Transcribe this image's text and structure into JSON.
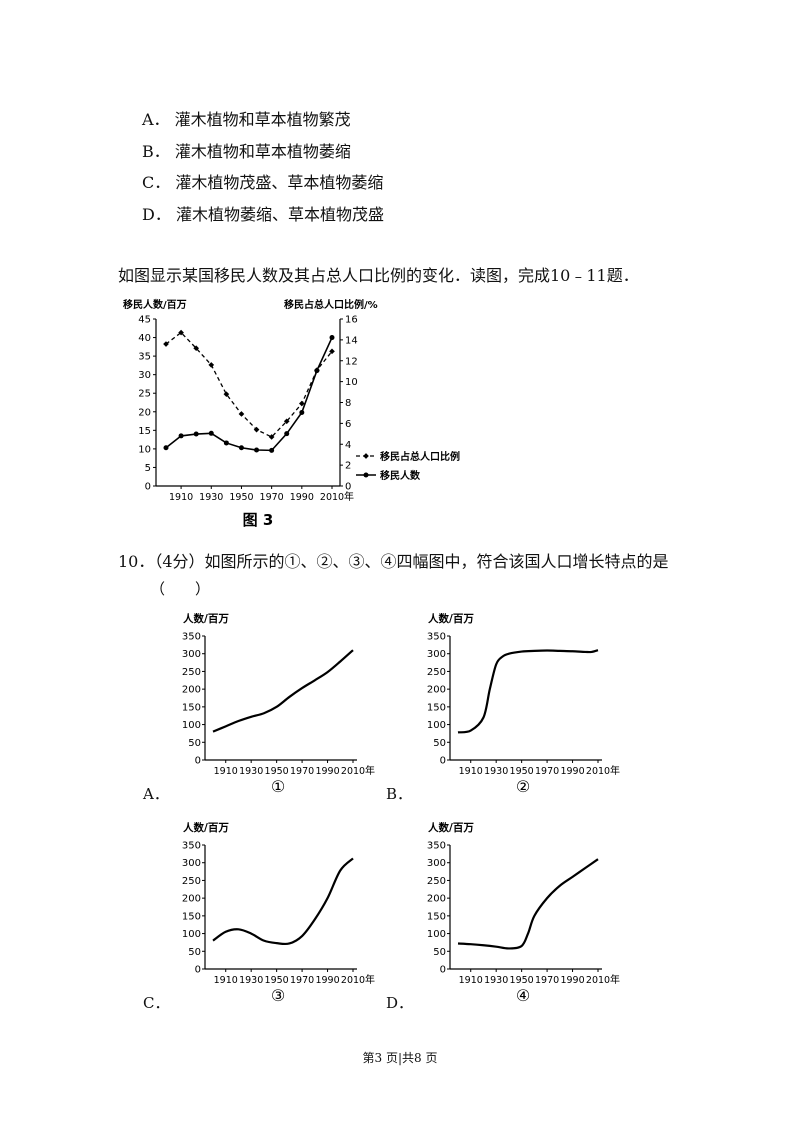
{
  "options_top": [
    {
      "letter": "A．",
      "text": "灌木植物和草本植物繁茂"
    },
    {
      "letter": "B．",
      "text": "灌木植物和草本植物萎缩"
    },
    {
      "letter": "C．",
      "text": "灌木植物茂盛、草本植物萎缩"
    },
    {
      "letter": "D．",
      "text": "灌木植物萎缩、草本植物茂盛"
    }
  ],
  "intro": "如图显示某国移民人数及其占总人口比例的变化．读图，完成10﹣11题．",
  "question10": "10．（4分）如图所示的①、②、③、④四幅图中，符合该国人口增长特点的是",
  "question10_paren": "（　　）",
  "answer_labels": [
    "A．",
    "B．",
    "C．",
    "D．"
  ],
  "footer": "第3 页|共8 页",
  "chart_data": [
    {
      "type": "line",
      "caption": "图 3",
      "ylabel_left": "移民人数/百万",
      "ylabel_right": "移民占总人口比例/%",
      "xlabel": "年",
      "x": [
        1900,
        1910,
        1920,
        1930,
        1940,
        1950,
        1960,
        1970,
        1980,
        1990,
        2000,
        2010
      ],
      "x_ticks": [
        "1910",
        "1930",
        "1950",
        "1970",
        "1990",
        "2010"
      ],
      "ylim_left": [
        0,
        45
      ],
      "yticks_left": [
        0,
        5,
        10,
        15,
        20,
        25,
        30,
        35,
        40,
        45
      ],
      "ylim_right": [
        0,
        16
      ],
      "yticks_right": [
        0,
        2,
        4,
        6,
        8,
        10,
        12,
        14,
        16
      ],
      "series": [
        {
          "name": "移民占总人口比例",
          "axis": "right",
          "style": "dashed",
          "values": [
            13.6,
            14.7,
            13.2,
            11.6,
            8.8,
            6.9,
            5.4,
            4.7,
            6.2,
            7.9,
            11.1,
            12.9
          ]
        },
        {
          "name": "移民人数",
          "axis": "left",
          "style": "solid",
          "values": [
            10.3,
            13.5,
            14.0,
            14.2,
            11.6,
            10.3,
            9.7,
            9.6,
            14.1,
            19.8,
            31.1,
            40.0
          ]
        }
      ],
      "legend": [
        "移民占总人口比例",
        "移民人数"
      ]
    },
    {
      "type": "line",
      "number": "①",
      "ylabel": "人数/百万",
      "xlabel": "年",
      "ylim": [
        0,
        350
      ],
      "yticks": [
        0,
        50,
        100,
        150,
        200,
        250,
        300,
        350
      ],
      "x_ticks": [
        "1910",
        "1930",
        "1950",
        "1970",
        "1990",
        "2010"
      ],
      "x": [
        1900,
        1910,
        1920,
        1930,
        1940,
        1950,
        1960,
        1970,
        1980,
        1990,
        2000,
        2010
      ],
      "values": [
        80,
        95,
        110,
        122,
        132,
        150,
        178,
        203,
        225,
        248,
        278,
        310
      ]
    },
    {
      "type": "line",
      "number": "②",
      "ylabel": "人数/百万",
      "xlabel": "年",
      "ylim": [
        0,
        350
      ],
      "yticks": [
        0,
        50,
        100,
        150,
        200,
        250,
        300,
        350
      ],
      "x_ticks": [
        "1910",
        "1930",
        "1950",
        "1970",
        "1990",
        "2010"
      ],
      "x": [
        1900,
        1910,
        1920,
        1925,
        1930,
        1935,
        1940,
        1950,
        1960,
        1970,
        1980,
        1990,
        2000,
        2005,
        2010
      ],
      "values": [
        78,
        83,
        120,
        200,
        270,
        292,
        300,
        306,
        308,
        309,
        308,
        307,
        305,
        305,
        310
      ]
    },
    {
      "type": "line",
      "number": "③",
      "ylabel": "人数/百万",
      "xlabel": "年",
      "ylim": [
        0,
        350
      ],
      "yticks": [
        0,
        50,
        100,
        150,
        200,
        250,
        300,
        350
      ],
      "x_ticks": [
        "1910",
        "1930",
        "1950",
        "1970",
        "1990",
        "2010"
      ],
      "x": [
        1900,
        1910,
        1920,
        1930,
        1940,
        1950,
        1960,
        1970,
        1980,
        1990,
        2000,
        2010
      ],
      "values": [
        80,
        105,
        112,
        100,
        80,
        73,
        72,
        93,
        140,
        200,
        278,
        312
      ]
    },
    {
      "type": "line",
      "number": "④",
      "ylabel": "人数/百万",
      "xlabel": "年",
      "ylim": [
        0,
        350
      ],
      "yticks": [
        0,
        50,
        100,
        150,
        200,
        250,
        300,
        350
      ],
      "x_ticks": [
        "1910",
        "1930",
        "1950",
        "1970",
        "1990",
        "2010"
      ],
      "x": [
        1900,
        1910,
        1920,
        1930,
        1940,
        1950,
        1955,
        1960,
        1970,
        1980,
        1990,
        2000,
        2010
      ],
      "values": [
        72,
        70,
        67,
        63,
        58,
        65,
        100,
        150,
        200,
        235,
        260,
        285,
        310
      ]
    }
  ]
}
